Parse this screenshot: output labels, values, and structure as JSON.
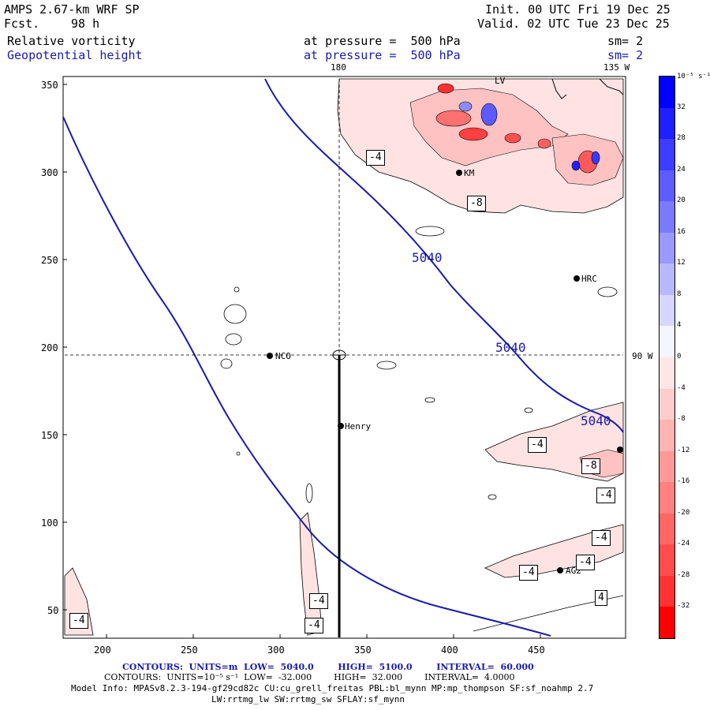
{
  "header": {
    "model": "AMPS 2.67-km WRF SP",
    "fcst_label": "Fcst.",
    "fcst_value": "98 h",
    "init": "Init. 00 UTC Fri 19 Dec 25",
    "valid": "Valid. 02 UTC Tue 23 Dec 25",
    "field1": "Relative vorticity",
    "field1_level": "at pressure =  500 hPa",
    "field1_sm": "sm= 2",
    "field2": "Geopotential height",
    "field2_level": "at pressure =  500 hPa",
    "field2_sm": "sm= 2"
  },
  "map": {
    "lon_labels": {
      "top_180": "180",
      "top_135w": "135 W",
      "right_90w": "90 W"
    },
    "stations": [
      "NCO",
      "Henry",
      "HRC",
      "AG2",
      "KM",
      "LV"
    ],
    "height_contour_labels": [
      "5040",
      "5040",
      "5040"
    ],
    "vort_box_labels": [
      "-4",
      "-8",
      "-4",
      "-8",
      "-4",
      "-4",
      "-4",
      "-4",
      "4",
      "-4",
      "-4",
      "-4"
    ]
  },
  "axes": {
    "x_ticks": [
      "200",
      "250",
      "300",
      "350",
      "400",
      "450"
    ],
    "y_ticks": [
      "350",
      "300",
      "250",
      "200",
      "150",
      "100",
      "50"
    ]
  },
  "colorbar": {
    "unit_label": "10⁻⁵ s⁻¹",
    "levels": [
      "32",
      "28",
      "24",
      "20",
      "16",
      "12",
      "8",
      "4",
      "0",
      "-4",
      "-8",
      "-12",
      "-16",
      "-20",
      "-24",
      "-28",
      "-32"
    ],
    "colors": [
      "#0000ff",
      "#1f1fff",
      "#3d3dff",
      "#5c5cff",
      "#7a7aff",
      "#9999ff",
      "#b8b8ff",
      "#d6d6ff",
      "#f5f5ff",
      "#ffe6e6",
      "#ffcccc",
      "#ffb3b3",
      "#ff9999",
      "#ff8080",
      "#ff6666",
      "#ff4d4d",
      "#ff3333",
      "#ff0000"
    ]
  },
  "footer": {
    "contours1": "CONTOURS:  UNITS=m  LOW=  5040.0        HIGH=  5100.0        INTERVAL=  60.000",
    "contours2": "CONTOURS:  UNITS=10⁻⁵ s⁻¹  LOW=  -32.000        HIGH=  32.000        INTERVAL=  4.0000",
    "model_info": "Model Info: MPASv8.2.3-194-gf29cd82c CU:cu_grell_freitas PBL:bl_mynn MP:mp_thompson SF:sf_noahmp 2.7",
    "model_info2": "LW:rrtmg_lw SW:rrtmg_sw SFLAY:sf_mynn"
  }
}
